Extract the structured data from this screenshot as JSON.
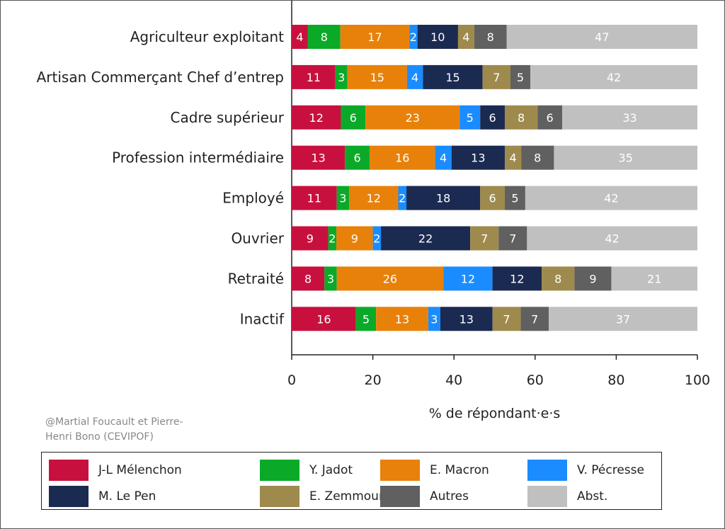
{
  "chart_data": {
    "type": "bar",
    "orientation": "horizontal",
    "stacked": true,
    "categories": [
      "Agriculteur exploitant",
      "Artisan Commerçant Chef d’entrep",
      "Cadre supérieur",
      "Profession intermédiaire",
      "Employé",
      "Ouvrier",
      "Retraité",
      "Inactif"
    ],
    "series": [
      {
        "name": "J-L Mélenchon",
        "color": "#c8103e",
        "values": [
          4,
          11,
          12,
          13,
          11,
          9,
          8,
          16
        ]
      },
      {
        "name": "Y. Jadot",
        "color": "#0aaa28",
        "values": [
          8,
          3,
          6,
          6,
          3,
          2,
          3,
          5
        ]
      },
      {
        "name": "E. Macron",
        "color": "#e8810a",
        "values": [
          17,
          15,
          23,
          16,
          12,
          9,
          26,
          13
        ]
      },
      {
        "name": "V. Pécresse",
        "color": "#1a8cff",
        "values": [
          2,
          4,
          5,
          4,
          2,
          2,
          12,
          3
        ]
      },
      {
        "name": "M. Le Pen",
        "color": "#1b2a50",
        "values": [
          10,
          15,
          6,
          13,
          18,
          22,
          12,
          13
        ]
      },
      {
        "name": "E. Zemmour",
        "color": "#9e8a4c",
        "values": [
          4,
          7,
          8,
          4,
          6,
          7,
          8,
          7
        ]
      },
      {
        "name": "Autres",
        "color": "#606060",
        "values": [
          8,
          5,
          6,
          8,
          5,
          7,
          9,
          7
        ]
      },
      {
        "name": "Abst.",
        "color": "#c0c0c0",
        "values": [
          47,
          42,
          33,
          35,
          42,
          42,
          21,
          37
        ]
      }
    ],
    "xlabel": "% de répondant·e·s",
    "xlim": [
      0,
      100
    ],
    "xticks": [
      0,
      20,
      40,
      60,
      80,
      100
    ],
    "grid": false,
    "legend": "bottom"
  },
  "credit": [
    "@Martial Foucault et Pierre-",
    "Henri Bono (CEVIPOF)"
  ]
}
